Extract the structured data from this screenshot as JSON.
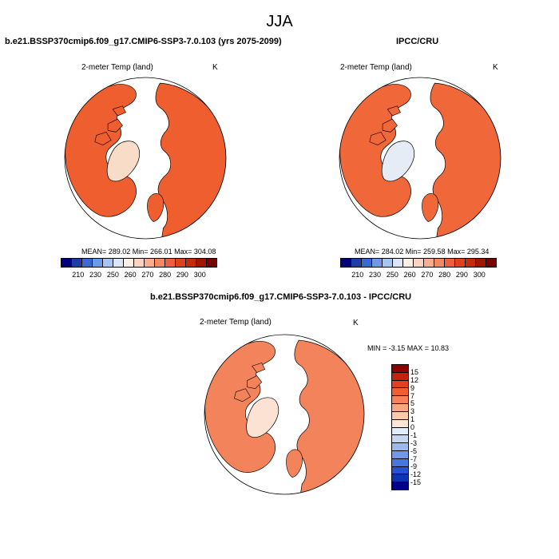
{
  "page": {
    "title": "JJA"
  },
  "panels": [
    {
      "title": "b.e21.BSSP370cmip6.f09_g17.CMIP6-SSP3-7.0.103 (yrs 2075-2099)",
      "label": "2-meter Temp (land)",
      "units": "K",
      "stats": "MEAN= 289.02  Min= 266.01  Max= 304.08",
      "land_color": "#ee5e2e",
      "ice_color": "#f8dcc8"
    },
    {
      "title": "IPCC/CRU",
      "label": "2-meter Temp (land)",
      "units": "K",
      "stats": "MEAN= 284.02  Min= 259.58  Max= 295.34",
      "land_color": "#f0673a",
      "ice_color": "#e6ecf6"
    },
    {
      "title": "b.e21.BSSP370cmip6.f09_g17.CMIP6-SSP3-7.0.103 - IPCC/CRU",
      "label": "2-meter Temp (land)",
      "units": "K",
      "stats": "MIN =  -3.15 MAX =  10.83",
      "land_color": "#f3835a",
      "ice_color": "#fbe2d2"
    }
  ],
  "colorbar_abs": {
    "colors": [
      "#00007f",
      "#1b3ea8",
      "#3a6ad0",
      "#6e98e8",
      "#a8c4f2",
      "#dbe6f8",
      "#fff0e6",
      "#fcd3bf",
      "#f9ae90",
      "#f48766",
      "#ef5f3d",
      "#e1401f",
      "#c62a0e",
      "#a11505",
      "#7a0000"
    ],
    "tick_labels": [
      "210",
      "230",
      "250",
      "260",
      "270",
      "280",
      "290",
      "300"
    ]
  },
  "colorbar_diff": {
    "colors": [
      "#8b0000",
      "#c8200c",
      "#e4401c",
      "#ef5f30",
      "#f5825a",
      "#f9a683",
      "#fcc9ae",
      "#fde6d8",
      "#e3ecf9",
      "#c5d6f2",
      "#9cb9ec",
      "#6f98e6",
      "#4677e0",
      "#2554d2",
      "#0b33b8",
      "#00008a"
    ],
    "tick_labels": [
      "15",
      "12",
      "9",
      "7",
      "5",
      "3",
      "1",
      "0",
      "-1",
      "-3",
      "-5",
      "-7",
      "-9",
      "-12",
      "-15"
    ]
  }
}
